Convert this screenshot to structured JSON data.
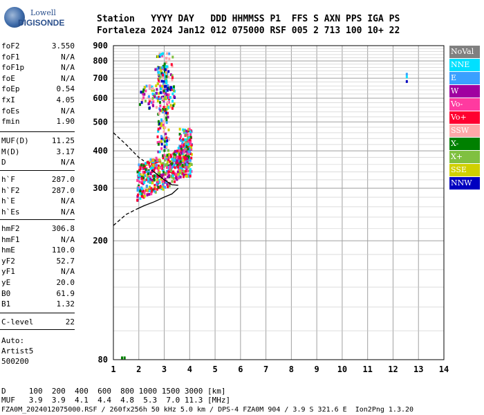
{
  "logo": {
    "line1": "Lowell",
    "line2": "DIGISONDE"
  },
  "header": {
    "row1": "Station   YYYY DAY   DDD HHMMSS P1  FFS S AXN PPS IGA PS",
    "row2": "Fortaleza 2024 Jan12 012 075000 RSF 005 2 713 100 10+ 22"
  },
  "params_group1": [
    {
      "name": "foF2",
      "value": "3.550"
    },
    {
      "name": "foF1",
      "value": "N/A"
    },
    {
      "name": "foF1p",
      "value": "N/A"
    },
    {
      "name": "foE",
      "value": "N/A"
    },
    {
      "name": "foEp",
      "value": "0.54"
    },
    {
      "name": "fxI",
      "value": "4.05"
    },
    {
      "name": "foEs",
      "value": "N/A"
    },
    {
      "name": "fmin",
      "value": "1.90"
    }
  ],
  "params_group2": [
    {
      "name": "MUF(D)",
      "value": "11.25"
    },
    {
      "name": "M(D)",
      "value": "3.17"
    },
    {
      "name": "D",
      "value": "N/A"
    }
  ],
  "params_group3": [
    {
      "name": "h`F",
      "value": "287.0"
    },
    {
      "name": "h`F2",
      "value": "287.0"
    },
    {
      "name": "h`E",
      "value": "N/A"
    },
    {
      "name": "h`Es",
      "value": "N/A"
    }
  ],
  "params_group4": [
    {
      "name": "hmF2",
      "value": "306.8"
    },
    {
      "name": "hmF1",
      "value": "N/A"
    },
    {
      "name": "hmE",
      "value": "110.0"
    },
    {
      "name": "yF2",
      "value": "52.7"
    },
    {
      "name": "yF1",
      "value": "N/A"
    },
    {
      "name": "yE",
      "value": "20.0"
    },
    {
      "name": "B0",
      "value": "61.9"
    },
    {
      "name": "B1",
      "value": "1.32"
    }
  ],
  "params_group5": [
    {
      "name": "C-level",
      "value": "22"
    }
  ],
  "auto_info": {
    "line1": "Auto:",
    "line2": "Artist5",
    "line3": "500200"
  },
  "legend": [
    {
      "label": "NoVal",
      "color": "#808080"
    },
    {
      "label": "NNE",
      "color": "#00e0ff"
    },
    {
      "label": "E",
      "color": "#3aa0ff"
    },
    {
      "label": "W",
      "color": "#a000a0"
    },
    {
      "label": "Vo-",
      "color": "#ff3aa0"
    },
    {
      "label": "Vo+",
      "color": "#ff0030"
    },
    {
      "label": "SSW",
      "color": "#ffa8a8"
    },
    {
      "label": "X-",
      "color": "#008000"
    },
    {
      "label": "X+",
      "color": "#80c040"
    },
    {
      "label": "SSE",
      "color": "#d0d000"
    },
    {
      "label": "NNW",
      "color": "#0000c0"
    }
  ],
  "chart_data": {
    "type": "scatter",
    "xlim": [
      1,
      14
    ],
    "ylim": [
      80,
      900
    ],
    "x_ticks": [
      "1",
      "2",
      "3",
      "4",
      "5",
      "6",
      "7",
      "8",
      "9",
      "10",
      "11",
      "12",
      "13",
      "14"
    ],
    "y_ticks": [
      "80",
      "200",
      "300",
      "400",
      "500",
      "600",
      "700",
      "800",
      "900"
    ],
    "log_scale_x": false,
    "log_scale_y": true,
    "grid": true,
    "profile_curve": [
      [
        1.0,
        460
      ],
      [
        1.5,
        420
      ],
      [
        2.0,
        380
      ],
      [
        2.5,
        345
      ],
      [
        3.0,
        320
      ],
      [
        3.3,
        308
      ],
      [
        3.55,
        306.8
      ]
    ],
    "dashed_upper": [
      [
        1.0,
        460
      ],
      [
        1.5,
        420
      ],
      [
        2.0,
        380
      ],
      [
        2.2,
        370
      ]
    ],
    "trace_lower": [
      [
        1.0,
        225
      ],
      [
        1.5,
        245
      ],
      [
        1.9,
        255
      ],
      [
        2.2,
        262
      ],
      [
        2.6,
        270
      ],
      [
        3.0,
        280
      ],
      [
        3.3,
        287
      ],
      [
        3.55,
        300
      ]
    ],
    "dashed_lower": [
      [
        1.0,
        225
      ],
      [
        1.5,
        245
      ],
      [
        1.9,
        255
      ]
    ],
    "isolated_points": [
      {
        "x": 1.3,
        "y": 82,
        "color": "#008000"
      },
      {
        "x": 1.4,
        "y": 82,
        "color": "#008000"
      },
      {
        "x": 12.5,
        "y": 730,
        "color": "#3aa0ff"
      },
      {
        "x": 12.5,
        "y": 715,
        "color": "#00e0ff"
      },
      {
        "x": 12.5,
        "y": 690,
        "color": "#0000c0"
      }
    ]
  },
  "mufs": {
    "row1": "D     100  200  400  600  800 1000 1500 3000 [km]",
    "row2": "MUF   3.9  3.9  4.1  4.4  4.8  5.3  7.0 11.3 [MHz]"
  },
  "footer": "FZA0M_2024012075000.RSF / 260fx256h 50 kHz 5.0 km / DPS-4 FZA0M 904 / 3.9 S 321.6 E  Ion2Png 1.3.20"
}
